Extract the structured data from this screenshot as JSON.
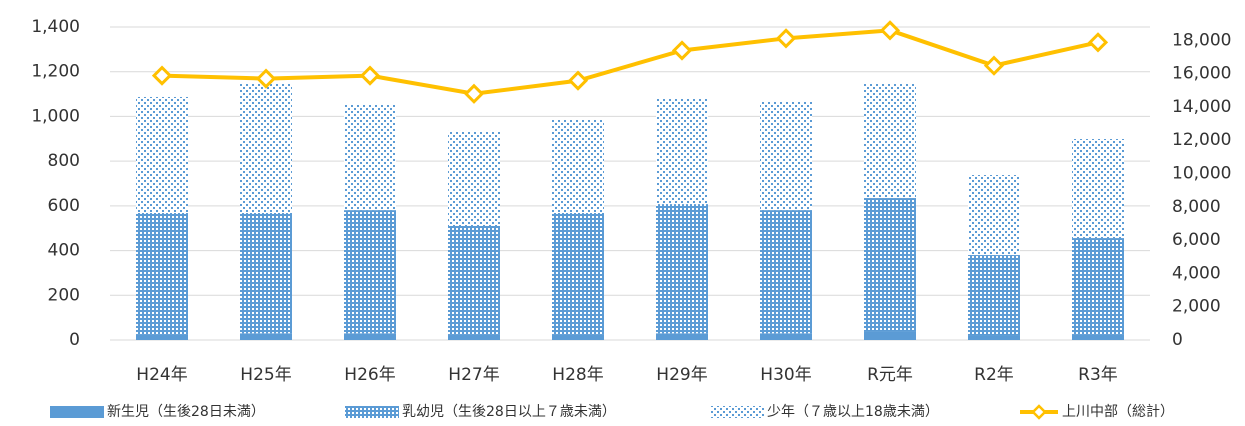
{
  "chart_data": {
    "type": "bar_line",
    "categories": [
      "H24年",
      "H25年",
      "H26年",
      "H27年",
      "H28年",
      "H29年",
      "H30年",
      "R元年",
      "R2年",
      "R3年"
    ],
    "series": [
      {
        "name": "新生児（生後28日未満）",
        "color": "#5b9bd5",
        "values": [
          25,
          30,
          30,
          25,
          25,
          30,
          30,
          40,
          20,
          25
        ]
      },
      {
        "name": "乳幼児（生後28日以上７歳未満）",
        "color": "#5b9bd5",
        "values": [
          543,
          538,
          551,
          485,
          543,
          578,
          551,
          595,
          360,
          431
        ]
      },
      {
        "name": "少年（７歳以上18歳未満）",
        "color": "#5b9bd5",
        "values": [
          519,
          577,
          474,
          425,
          420,
          470,
          488,
          510,
          358,
          443
        ]
      },
      {
        "name": "上川中部（総計）",
        "color": "#ffc000",
        "axis": "y2",
        "values": [
          15880,
          15700,
          15880,
          14790,
          15580,
          17390,
          18120,
          18600,
          16480,
          17880
        ]
      }
    ],
    "ylim": [
      0,
      1400
    ],
    "yticks": [
      0,
      200,
      400,
      600,
      800,
      {
        "value": 1000,
        "label": "1,000"
      },
      {
        "value": 1200,
        "label": "1,200"
      },
      {
        "value": 1400,
        "label": "1,400"
      }
    ],
    "y2lim": [
      0,
      18800
    ],
    "y2ticks": [
      0,
      {
        "value": 2000,
        "label": "2,000"
      },
      {
        "value": 4000,
        "label": "4,000"
      },
      {
        "value": 6000,
        "label": "6,000"
      },
      {
        "value": 8000,
        "label": "8,000"
      },
      {
        "value": 10000,
        "label": "10,000"
      },
      {
        "value": 12000,
        "label": "12,000"
      },
      {
        "value": 14000,
        "label": "14,000"
      },
      {
        "value": 16000,
        "label": "16,000"
      },
      {
        "value": 18000,
        "label": "18,000"
      }
    ],
    "grid": true
  }
}
